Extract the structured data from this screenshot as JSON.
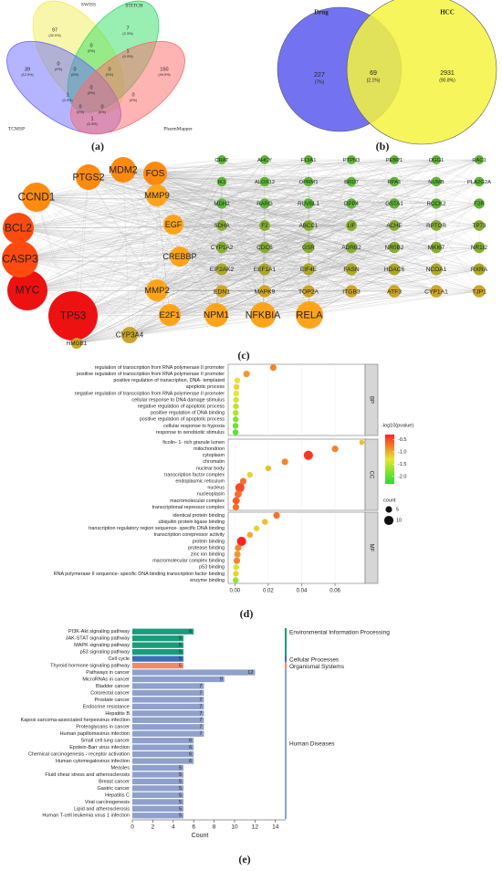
{
  "chart_data": [
    {
      "type": "venn",
      "panel_label": "(a)",
      "sets": [
        {
          "name": "SWISS",
          "color": "#f2ee55",
          "text_color": "#8a8a20"
        },
        {
          "name": "STITCH",
          "color": "#33dd66",
          "text_color": "#22aa44"
        },
        {
          "name": "TCMSP",
          "color": "#6a6aff",
          "text_color": "#3333cc"
        },
        {
          "name": "PharmMapper",
          "color": "#ff6a6a",
          "text_color": "#dd2222"
        }
      ],
      "regions": [
        {
          "value": 97,
          "label": "(32.0%)"
        },
        {
          "value": 7,
          "label": "(2.3%)"
        },
        {
          "value": 39,
          "label": "(12.9%)"
        },
        {
          "value": 150,
          "label": "(49.5%)"
        },
        {
          "value": 0,
          "label": "(0%)"
        },
        {
          "value": 0,
          "label": "(0%)"
        },
        {
          "value": 1,
          "label": "(0.3%)"
        },
        {
          "value": 0,
          "label": "(0%)"
        },
        {
          "value": 0,
          "label": "(0%)"
        },
        {
          "value": 1,
          "label": "(0.3%)"
        },
        {
          "value": 0,
          "label": "(0%)"
        },
        {
          "value": 0,
          "label": "(0%)"
        },
        {
          "value": 0,
          "label": "(0%)"
        },
        {
          "value": 0,
          "label": "(0%)"
        },
        {
          "value": 1,
          "label": "(0.3%)"
        }
      ]
    },
    {
      "type": "venn",
      "panel_label": "(b)",
      "sets": [
        {
          "name": "Drug",
          "color": "#5a5af0",
          "text_color": "#3333cc"
        },
        {
          "name": "HCC",
          "color": "#f5f540",
          "text_color": "#999922"
        }
      ],
      "regions": [
        {
          "value": 227,
          "label": "(7%)"
        },
        {
          "value": 69,
          "label": "(2.1%)"
        },
        {
          "value": 2931,
          "label": "(90.8%)"
        }
      ]
    },
    {
      "type": "network",
      "panel_label": "(c)",
      "groups": [
        {
          "color": "#ee1111",
          "labels": [
            "TP53",
            "MYC"
          ]
        },
        {
          "color": "#ff4a10",
          "labels": [
            "CASP3",
            "BCL2"
          ]
        },
        {
          "color": "#ff8a10",
          "labels": [
            "CCND1",
            "PTGS2",
            "MDM2",
            "FOS"
          ]
        },
        {
          "color": "#ffa41a",
          "labels": [
            "MMP9",
            "EGF",
            "CREBBP",
            "MMP2"
          ]
        },
        {
          "color": "#c9a42a",
          "labels": [
            "HMGB1",
            "CYP3A4"
          ]
        },
        {
          "color": "#5db533",
          "labels": [
            "CRAT",
            "AHCY",
            "F13A1",
            "PTPN3",
            "PEBP1",
            "OGG1",
            "RAC1",
            "IK1",
            "ALOX12",
            "OPRM1",
            "BRD7",
            "RPA1",
            "NUMB",
            "PLA2G2A",
            "MDH2",
            "RARG",
            "RUVBL1",
            "DPP4",
            "GSTA1",
            "ROCK2",
            "F2R"
          ]
        },
        {
          "color": "#84ad30",
          "labels": [
            "SDHA",
            "F2",
            "ABCC1",
            "LIF",
            "ACHE",
            "RPTOR",
            "TP73",
            "CYP1A2",
            "CDC6",
            "GSR",
            "ADRB2",
            "NR0B2",
            "MKI67",
            "NR1I2"
          ]
        },
        {
          "color": "#a9a82a",
          "labels": [
            "EIF2AK2",
            "EEF1A1",
            "EIF4E",
            "FASN",
            "HDAC6",
            "NCOA1",
            "RXRA"
          ]
        },
        {
          "color": "#d0a424",
          "labels": [
            "EDN1",
            "MAPK9",
            "TOP2A",
            "ITGB3",
            "ATF3",
            "CYP1A1",
            "TJP1"
          ]
        },
        {
          "color": "#ffa41a",
          "labels": [
            "E2F1",
            "NPM1",
            "NFKBIA",
            "RELA"
          ]
        }
      ]
    },
    {
      "type": "bubble",
      "panel_label": "(d)",
      "xlim": [
        -0.004,
        0.078
      ],
      "xticks": [
        {
          "value": 0,
          "label": "0.00"
        },
        0.02,
        0.04,
        0.06
      ],
      "facets": [
        {
          "name": "BP",
          "categories": [
            "regulation of transcription from RNA polymerase II promoter",
            "positive regulation of transcription from RNA polymerase II promoter",
            "positive regulation of transcription, DNA- templated",
            "apoptotic process",
            "negative regulation of transcription from RNA polymerase II promoter",
            "cellular response to DNA damage stimulus",
            "negative regulation of apoptotic process",
            "positive regulation of DNA binding",
            "positive regulation of apoptotic process",
            "cellular response to hypoxia",
            "response to xenobiotic stimulus"
          ],
          "x": [
            0.023,
            0.007,
            0.0015,
            0.001,
            0.0008,
            0.0007,
            0.0006,
            0.0005,
            0.0005,
            0.0004,
            0.0004
          ],
          "color_values": [
            -0.8,
            -0.9,
            -1.3,
            -1.2,
            -1.3,
            -1.4,
            -1.5,
            -1.6,
            -1.8,
            -1.9,
            -2.0
          ],
          "counts": [
            5,
            5,
            4,
            4,
            4,
            4,
            4,
            4,
            4,
            4,
            4
          ]
        },
        {
          "name": "CC",
          "categories": [
            "ficolin- 1- rich granule lumen",
            "mitochondrion",
            "cytoplasm",
            "chromatin",
            "nuclear body",
            "transcription factor complex",
            "endoplasmic reticulum",
            "nucleus",
            "nucleoplasm",
            "macromolecular complex",
            "transcriptional repressor complex"
          ],
          "x": [
            0.076,
            0.06,
            0.044,
            0.03,
            0.02,
            0.009,
            0.005,
            0.003,
            0.002,
            0.0008,
            0.0006
          ],
          "color_values": [
            -1.1,
            -0.8,
            -0.4,
            -0.8,
            -1.1,
            -1.2,
            -0.7,
            -0.5,
            -0.7,
            -0.6,
            -0.7
          ],
          "counts": [
            3,
            5,
            10,
            5,
            4,
            4,
            5,
            10,
            6,
            6,
            5
          ]
        },
        {
          "name": "MF",
          "categories": [
            "identical protein binding",
            "ubiquitin protein ligase binding",
            "transcription regulatory region sequence- specific DNA binding",
            "transcription corepressor activity",
            "protein binding",
            "protease binding",
            "zinc ion binding",
            "macromolecular complex binding",
            "p53 binding",
            "RNA polymerase II sequence- specific DNA binding transcription factor binding",
            "enzyme binding"
          ],
          "x": [
            0.025,
            0.018,
            0.013,
            0.009,
            0.004,
            0.002,
            0.0015,
            0.0012,
            0.0008,
            0.0006,
            0.0005
          ],
          "color_values": [
            -0.7,
            -1.1,
            -1.2,
            -1.0,
            -0.3,
            -0.8,
            -0.9,
            -0.8,
            -1.4,
            -1.2,
            -1.7
          ],
          "counts": [
            5,
            4,
            4,
            4,
            10,
            5,
            5,
            5,
            4,
            4,
            4
          ]
        }
      ],
      "colorbar": {
        "title": "-log10(pvalue)",
        "lim": [
          -2.3,
          -0.3
        ],
        "ticks": [
          -0.5,
          {
            "value": -1,
            "label": "-1.0"
          },
          -1.5,
          {
            "value": -2,
            "label": "-2.0"
          }
        ],
        "colors": [
          "#22dd33",
          "#e6e633",
          "#ff2222"
        ]
      },
      "size_legend": {
        "title": "count",
        "values": [
          5,
          10
        ]
      }
    },
    {
      "type": "bar",
      "orientation": "horizontal",
      "panel_label": "(e)",
      "xlim": [
        0,
        15
      ],
      "xticks": [
        0,
        2,
        4,
        6,
        8,
        10,
        12,
        14
      ],
      "xlabel": "Count",
      "series": [
        {
          "name": "Environmental Information Processing",
          "color": "#1a9b7c",
          "categories": [
            "PI3K-Akt signaling pathway",
            "JAK-STAT signaling pathway",
            "MAPK signaling pathway",
            "p53 signaling pathway"
          ],
          "values": [
            6,
            5,
            5,
            5
          ]
        },
        {
          "name": "Cellular Processes",
          "color": "#3c6fb5",
          "categories": [
            "Cell cycle"
          ],
          "values": [
            5
          ]
        },
        {
          "name": "Organismal Systems",
          "color": "#f08a6a",
          "categories": [
            "Thyroid hormone signaling pathway"
          ],
          "values": [
            5
          ]
        },
        {
          "name": "Human Diseases",
          "color": "#8ea0cb",
          "categories": [
            "Pathways in cancer",
            "MicroRNAs in cancer",
            "Bladder cancer",
            "Colorectal cancer",
            "Prostate cancer",
            "Endocrine resistance",
            "Hepatitis B",
            "Kaposi sarcoma-associated herpesvirus infection",
            "Proteoglycans in cancer",
            "Human papillomavirus infection",
            "Small cell lung cancer",
            "Epstein-Barr virus infection",
            "Chemical carcinogenesis - receptor activation",
            "Human cytomegalovirus infection",
            "Measles",
            "Fluid shear stress and atherosclerosis",
            "Breast cancer",
            "Gastric cancer",
            "Hepatitis C",
            "Viral carcinogenesis",
            "Lipid and atherosclerosis",
            "Human T-cell leukemia virus 1 infection"
          ],
          "values": [
            12,
            9,
            7,
            7,
            7,
            7,
            7,
            7,
            7,
            7,
            6,
            6,
            6,
            6,
            5,
            5,
            5,
            5,
            5,
            5,
            5,
            5
          ]
        }
      ]
    }
  ]
}
